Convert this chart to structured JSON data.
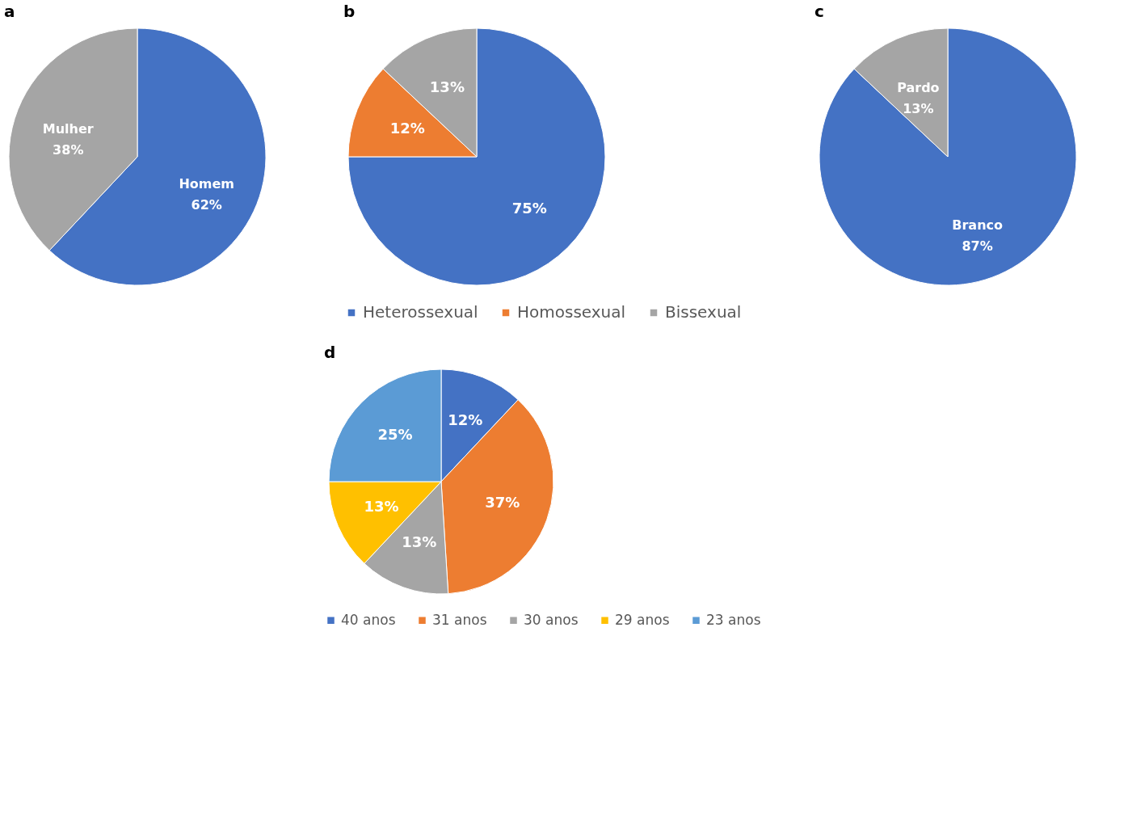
{
  "chart_data": [
    {
      "type": "pie",
      "title": "a",
      "categories": [
        "Homem",
        "Mulher"
      ],
      "values": [
        62,
        38
      ],
      "colors": [
        "#4472c4",
        "#a5a5a5"
      ],
      "value_labels": [
        "62%",
        "38%"
      ],
      "legend": false
    },
    {
      "type": "pie",
      "title": "b",
      "categories": [
        "Heterossexual",
        "Homossexual",
        "Bissexual"
      ],
      "values": [
        75,
        12,
        13
      ],
      "colors": [
        "#4472c4",
        "#ed7d31",
        "#a5a5a5"
      ],
      "value_labels": [
        "75%",
        "12%",
        "13%"
      ],
      "legend": "bottom"
    },
    {
      "type": "pie",
      "title": "c",
      "categories": [
        "Branco",
        "Pardo"
      ],
      "values": [
        87,
        13
      ],
      "colors": [
        "#4472c4",
        "#a5a5a5"
      ],
      "value_labels": [
        "87%",
        "13%"
      ],
      "legend": false
    },
    {
      "type": "pie",
      "title": "d",
      "categories": [
        "40 anos",
        "31 anos",
        "30 anos",
        "29 anos",
        "23 anos"
      ],
      "values": [
        12,
        37,
        13,
        13,
        25
      ],
      "colors": [
        "#4472c4",
        "#ed7d31",
        "#a5a5a5",
        "#ffc000",
        "#5b9bd5"
      ],
      "value_labels": [
        "12%",
        "37%",
        "13%",
        "13%",
        "25%"
      ],
      "legend": "bottom"
    }
  ]
}
